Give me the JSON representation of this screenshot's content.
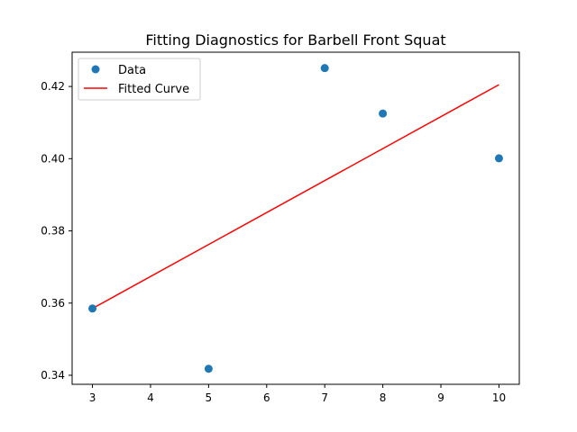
{
  "chart_data": {
    "type": "scatter",
    "title": "Fitting Diagnostics for Barbell Front Squat",
    "xlabel": "",
    "ylabel": "",
    "xlim": [
      2.65,
      10.35
    ],
    "ylim": [
      0.3375,
      0.4295
    ],
    "xticks": [
      3,
      4,
      5,
      6,
      7,
      8,
      9,
      10
    ],
    "yticks": [
      0.34,
      0.36,
      0.38,
      0.4,
      0.42
    ],
    "xtick_labels": [
      "3",
      "4",
      "5",
      "6",
      "7",
      "8",
      "9",
      "10"
    ],
    "ytick_labels": [
      "0.34",
      "0.36",
      "0.38",
      "0.40",
      "0.42"
    ],
    "grid": false,
    "legend_position": "top-left",
    "series": [
      {
        "name": "Data",
        "kind": "scatter",
        "color": "#1f77b4",
        "x": [
          3,
          5,
          7,
          8,
          10
        ],
        "y": [
          0.3585,
          0.3418,
          0.4251,
          0.4125,
          0.4001
        ]
      },
      {
        "name": "Fitted Curve",
        "kind": "line",
        "color": "#ff0000",
        "x": [
          3,
          10
        ],
        "y": [
          0.3585,
          0.4205
        ]
      }
    ]
  }
}
